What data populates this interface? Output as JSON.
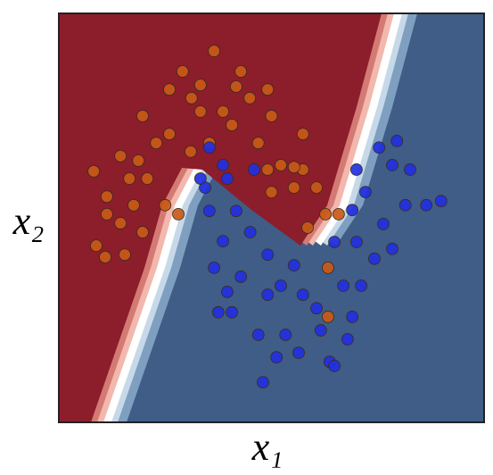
{
  "chart_data": {
    "type": "scatter",
    "xlabel": "x₁",
    "ylabel": "x₂",
    "xlim": [
      0,
      100
    ],
    "ylim": [
      0,
      100
    ],
    "series": [
      {
        "color": "#c95a17",
        "x": [
          36.5,
          29.1,
          41.7,
          26,
          31.2,
          19.7,
          22.9,
          14.5,
          8.2,
          11.3,
          8.8,
          10.9,
          17.6,
          20.8,
          16.6,
          26,
          33.3,
          38.6,
          44.9,
          49.1,
          50,
          46.9,
          52.2,
          57.4,
          55.3,
          60.6,
          62.7,
          65.8,
          58.5,
          50,
          49.1,
          40.7,
          57.4,
          28.1,
          25,
          19.7,
          14.5,
          15.5,
          11.3,
          35.4,
          31,
          18.7,
          63.3,
          63.3,
          55.3,
          42.8,
          33.3
        ],
        "values": [
          90.8,
          85.8,
          82.1,
          81.4,
          79.3,
          74.9,
          68.3,
          65.1,
          61.4,
          50.9,
          43.2,
          40.4,
          53.1,
          59.6,
          59.6,
          70.5,
          76,
          76,
          79.3,
          81.4,
          74.9,
          68.3,
          62.9,
          61.8,
          57.4,
          57.4,
          50.9,
          50.9,
          47.6,
          56.3,
          61.8,
          72.7,
          70.5,
          50.9,
          53.1,
          46.5,
          48.7,
          41,
          55.2,
          68.3,
          66.2,
          64,
          37.8,
          25.8,
          62.4,
          85.8,
          82.5
        ]
      },
      {
        "color": "#2230e0",
        "x": [
          79.5,
          75.3,
          78.4,
          82.6,
          89.9,
          86.4,
          81.5,
          72.1,
          69,
          76.3,
          78.4,
          74.2,
          71.1,
          69,
          67.9,
          63.7,
          56.4,
          51.2,
          48,
          53.3,
          46.9,
          40.7,
          37.5,
          36.5,
          38.6,
          35.4,
          34.4,
          35.4,
          38.6,
          45.9,
          41.7,
          45,
          49.1,
          52.2,
          57.4,
          60.6,
          61.6,
          66.9,
          70,
          64.8,
          55.3,
          42.8,
          39.6,
          64.8,
          70,
          49.1,
          33.3,
          39.6
        ],
        "values": [
          68.8,
          67.2,
          62.9,
          61.8,
          54.1,
          53.1,
          53.1,
          56.3,
          51.9,
          48.5,
          42.4,
          40,
          33.4,
          25.8,
          20.3,
          14.8,
          17,
          15.9,
          9.8,
          21.4,
          21.4,
          26.9,
          26.9,
          37.8,
          44.3,
          51.7,
          57.4,
          67.2,
          62.9,
          61.8,
          51.7,
          46.5,
          41,
          33.4,
          31.2,
          27.9,
          22.5,
          33.4,
          44.1,
          44.1,
          38.4,
          35.6,
          31.9,
          13.8,
          61.8,
          31.2,
          59.6,
          59.6
        ]
      }
    ]
  }
}
